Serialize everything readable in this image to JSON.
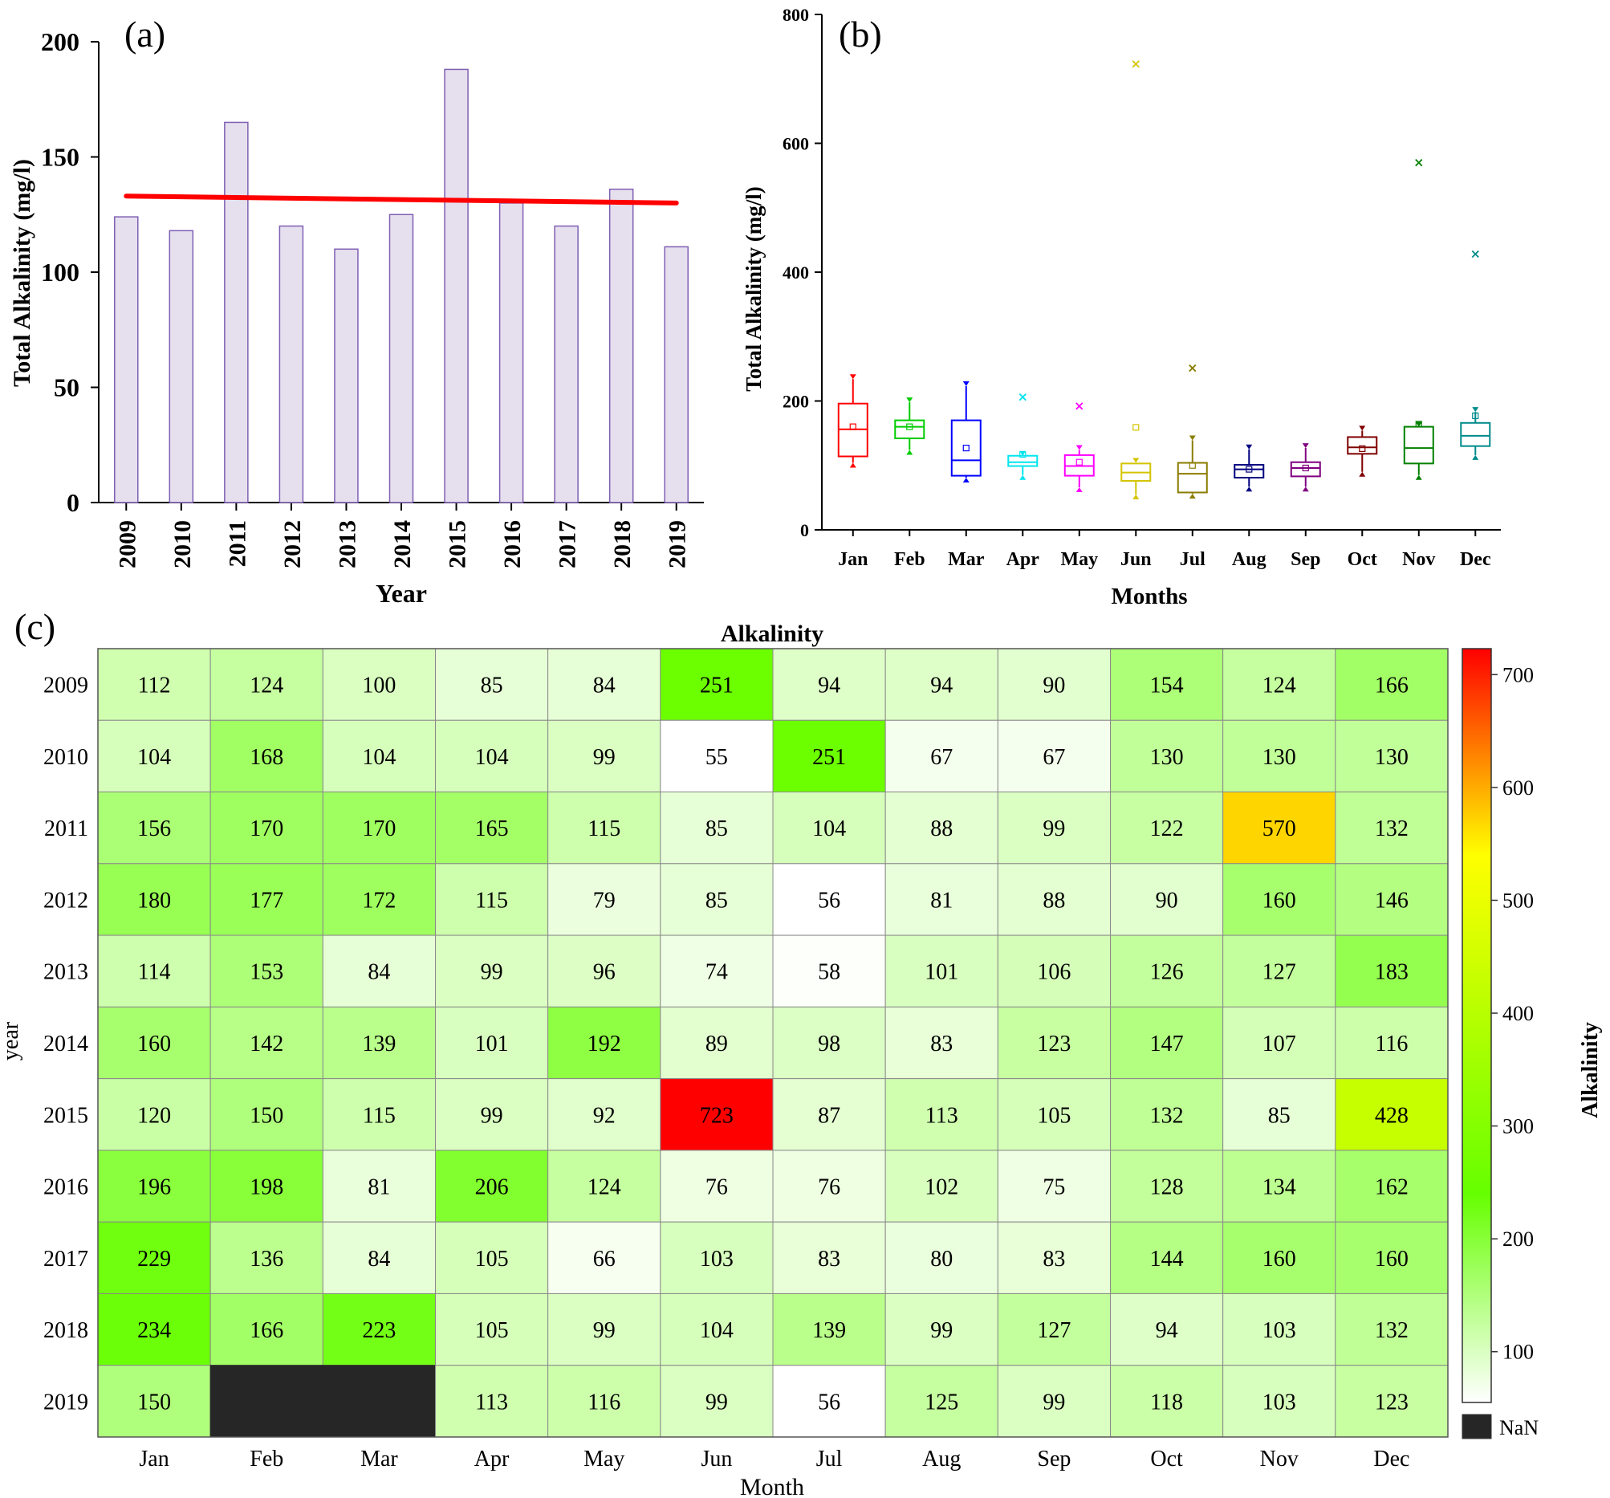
{
  "chart_data": [
    {
      "panel_label": "(a)",
      "type": "bar",
      "ylabel": "Total Alkalinity (mg/l)",
      "xlabel": "Year",
      "ylim": [
        0,
        200
      ],
      "yticks": [
        0,
        50,
        100,
        150,
        200
      ],
      "categories": [
        "2009",
        "2010",
        "2011",
        "2012",
        "2013",
        "2014",
        "2015",
        "2016",
        "2017",
        "2018",
        "2019"
      ],
      "values": [
        124,
        118,
        165,
        120,
        110,
        125,
        188,
        130,
        120,
        136,
        111
      ],
      "trend": {
        "start": 133,
        "end": 130,
        "color": "#ff0000"
      },
      "bar_fill": "#e6e0ee",
      "bar_stroke": "#7f5fb3"
    },
    {
      "panel_label": "(b)",
      "type": "box",
      "ylabel": "Total Alkalinity (mg/l)",
      "xlabel": "Months",
      "ylim": [
        0,
        800
      ],
      "yticks": [
        0,
        200,
        400,
        600,
        800
      ],
      "categories": [
        "Jan",
        "Feb",
        "Mar",
        "Apr",
        "May",
        "Jun",
        "Jul",
        "Aug",
        "Sep",
        "Oct",
        "Nov",
        "Dec"
      ],
      "boxes": [
        {
          "q1": 114,
          "median": 156,
          "q3": 196,
          "mean": 160,
          "min": 104,
          "max": 234,
          "outliers": []
        },
        {
          "q1": 142,
          "median": 160,
          "q3": 170,
          "mean": 160,
          "min": 124,
          "max": 198,
          "outliers": []
        },
        {
          "q1": 84,
          "median": 108,
          "q3": 170,
          "mean": 127,
          "min": 81,
          "max": 223,
          "outliers": []
        },
        {
          "q1": 99,
          "median": 105,
          "q3": 115,
          "mean": 117,
          "min": 85,
          "max": 115,
          "outliers": [
            206
          ]
        },
        {
          "q1": 84,
          "median": 99,
          "q3": 116,
          "mean": 105,
          "min": 66,
          "max": 124,
          "outliers": [
            192
          ]
        },
        {
          "q1": 76,
          "median": 89,
          "q3": 103,
          "mean": 159,
          "min": 55,
          "max": 104,
          "outliers": [
            723
          ]
        },
        {
          "q1": 58,
          "median": 87,
          "q3": 104,
          "mean": 100,
          "min": 56,
          "max": 139,
          "outliers": [
            251
          ]
        },
        {
          "q1": 81,
          "median": 94,
          "q3": 101,
          "mean": 94,
          "min": 67,
          "max": 125,
          "outliers": []
        },
        {
          "q1": 83,
          "median": 96,
          "q3": 105,
          "mean": 96,
          "min": 67,
          "max": 127,
          "outliers": []
        },
        {
          "q1": 118,
          "median": 128,
          "q3": 144,
          "mean": 126,
          "min": 90,
          "max": 154,
          "outliers": []
        },
        {
          "q1": 103,
          "median": 127,
          "q3": 160,
          "mean": 164,
          "min": 85,
          "max": 160,
          "outliers": [
            570
          ]
        },
        {
          "q1": 130,
          "median": 146,
          "q3": 166,
          "mean": 177,
          "min": 116,
          "max": 183,
          "outliers": [
            428
          ]
        }
      ],
      "colors": [
        "#ff0000",
        "#00cc00",
        "#0000ff",
        "#00e5ee",
        "#ff00ff",
        "#d4c400",
        "#8b7d00",
        "#000080",
        "#800080",
        "#800000",
        "#008000",
        "#008b8b"
      ]
    },
    {
      "panel_label": "(c)",
      "type": "heatmap",
      "title": "Alkalinity",
      "xlabel": "Month",
      "ylabel": "year",
      "colorbar_label": "Alkalinity",
      "colorbar_ticks": [
        100,
        200,
        300,
        400,
        500,
        600,
        700
      ],
      "colorbar_range": [
        55,
        723
      ],
      "nan_label": "NaN",
      "nan_color": "#262626",
      "color_stops": [
        "#ffffff",
        "#66ff00",
        "#ffff00",
        "#ff0000"
      ],
      "x": [
        "Jan",
        "Feb",
        "Mar",
        "Apr",
        "May",
        "Jun",
        "Jul",
        "Aug",
        "Sep",
        "Oct",
        "Nov",
        "Dec"
      ],
      "y": [
        "2009",
        "2010",
        "2011",
        "2012",
        "2013",
        "2014",
        "2015",
        "2016",
        "2017",
        "2018",
        "2019"
      ],
      "values": [
        [
          112,
          124,
          100,
          85,
          84,
          251,
          94,
          94,
          90,
          154,
          124,
          166
        ],
        [
          104,
          168,
          104,
          104,
          99,
          55,
          251,
          67,
          67,
          130,
          130,
          130
        ],
        [
          156,
          170,
          170,
          165,
          115,
          85,
          104,
          88,
          99,
          122,
          570,
          132
        ],
        [
          180,
          177,
          172,
          115,
          79,
          85,
          56,
          81,
          88,
          90,
          160,
          146
        ],
        [
          114,
          153,
          84,
          99,
          96,
          74,
          58,
          101,
          106,
          126,
          127,
          183
        ],
        [
          160,
          142,
          139,
          101,
          192,
          89,
          98,
          83,
          123,
          147,
          107,
          116
        ],
        [
          120,
          150,
          115,
          99,
          92,
          723,
          87,
          113,
          105,
          132,
          85,
          428
        ],
        [
          196,
          198,
          81,
          206,
          124,
          76,
          76,
          102,
          75,
          128,
          134,
          162
        ],
        [
          229,
          136,
          84,
          105,
          66,
          103,
          83,
          80,
          83,
          144,
          160,
          160
        ],
        [
          234,
          166,
          223,
          105,
          99,
          104,
          139,
          99,
          127,
          94,
          103,
          132
        ],
        [
          150,
          null,
          null,
          113,
          116,
          99,
          56,
          125,
          99,
          118,
          103,
          123
        ]
      ]
    }
  ]
}
